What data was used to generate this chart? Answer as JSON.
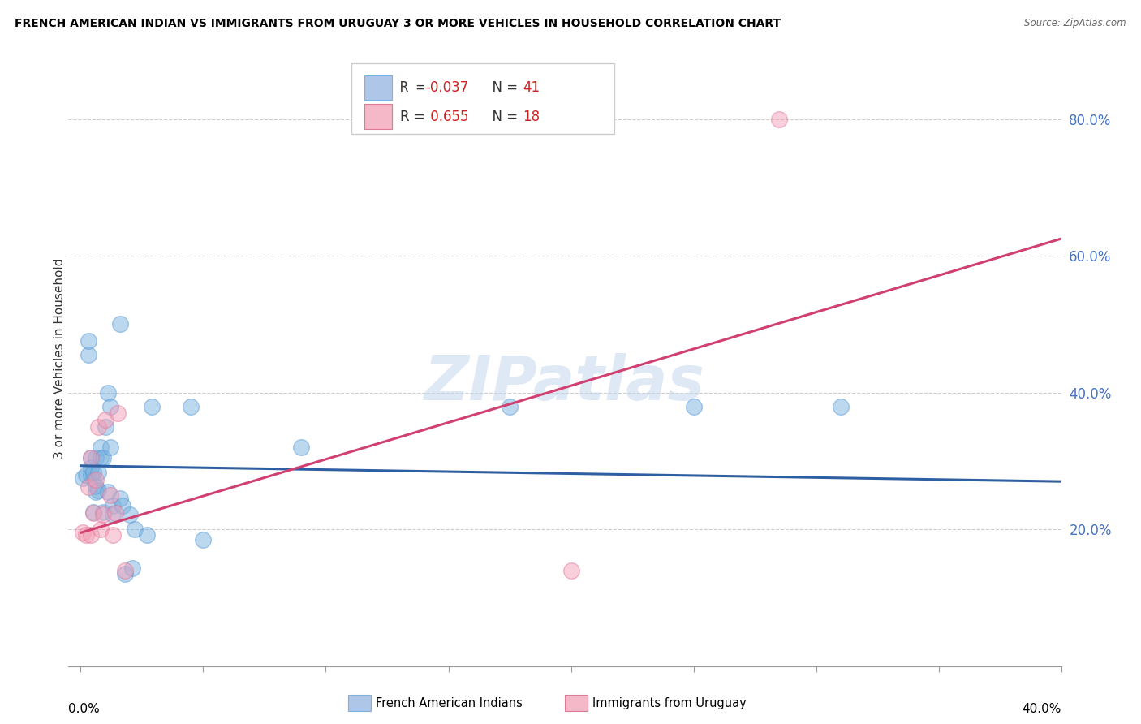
{
  "title": "FRENCH AMERICAN INDIAN VS IMMIGRANTS FROM URUGUAY 3 OR MORE VEHICLES IN HOUSEHOLD CORRELATION CHART",
  "source": "Source: ZipAtlas.com",
  "ylabel": "3 or more Vehicles in Household",
  "right_yticks": [
    "20.0%",
    "40.0%",
    "60.0%",
    "80.0%"
  ],
  "right_ytick_vals": [
    0.2,
    0.4,
    0.6,
    0.8
  ],
  "watermark": "ZIPatlas",
  "blue_scatter_x": [
    0.001,
    0.002,
    0.003,
    0.003,
    0.004,
    0.004,
    0.004,
    0.005,
    0.005,
    0.005,
    0.006,
    0.006,
    0.006,
    0.007,
    0.007,
    0.008,
    0.008,
    0.009,
    0.009,
    0.01,
    0.011,
    0.011,
    0.012,
    0.012,
    0.013,
    0.013,
    0.016,
    0.016,
    0.017,
    0.018,
    0.02,
    0.021,
    0.022,
    0.027,
    0.029,
    0.045,
    0.05,
    0.09,
    0.175,
    0.25,
    0.31
  ],
  "blue_scatter_y": [
    0.275,
    0.28,
    0.455,
    0.475,
    0.28,
    0.29,
    0.305,
    0.225,
    0.273,
    0.283,
    0.255,
    0.263,
    0.305,
    0.257,
    0.283,
    0.305,
    0.32,
    0.225,
    0.305,
    0.35,
    0.255,
    0.4,
    0.32,
    0.38,
    0.235,
    0.222,
    0.245,
    0.5,
    0.235,
    0.135,
    0.222,
    0.143,
    0.2,
    0.192,
    0.38,
    0.38,
    0.185,
    0.32,
    0.38,
    0.38,
    0.38
  ],
  "pink_scatter_x": [
    0.001,
    0.002,
    0.003,
    0.004,
    0.004,
    0.005,
    0.006,
    0.007,
    0.008,
    0.009,
    0.01,
    0.012,
    0.013,
    0.014,
    0.015,
    0.018,
    0.2,
    0.285
  ],
  "pink_scatter_y": [
    0.195,
    0.192,
    0.262,
    0.305,
    0.192,
    0.224,
    0.272,
    0.35,
    0.2,
    0.222,
    0.36,
    0.25,
    0.192,
    0.224,
    0.37,
    0.14,
    0.14,
    0.8
  ],
  "blue_line_x": [
    0.0,
    0.4
  ],
  "blue_line_y": [
    0.293,
    0.27
  ],
  "pink_line_x": [
    0.0,
    0.4
  ],
  "pink_line_y": [
    0.195,
    0.625
  ],
  "blue_color": "#7ab3e0",
  "pink_color": "#f4a0b8",
  "blue_edge_color": "#5b9bd5",
  "pink_edge_color": "#e07898",
  "blue_line_color": "#2e5fa3",
  "pink_line_color": "#d04070",
  "xlim": [
    -0.005,
    0.4
  ],
  "ylim": [
    0.0,
    0.9
  ],
  "grid_yticks": [
    0.2,
    0.4,
    0.6,
    0.8
  ],
  "legend_r1": "R = -0.037",
  "legend_n1": "N = 41",
  "legend_r2": "R =  0.655",
  "legend_n2": "N = 18"
}
